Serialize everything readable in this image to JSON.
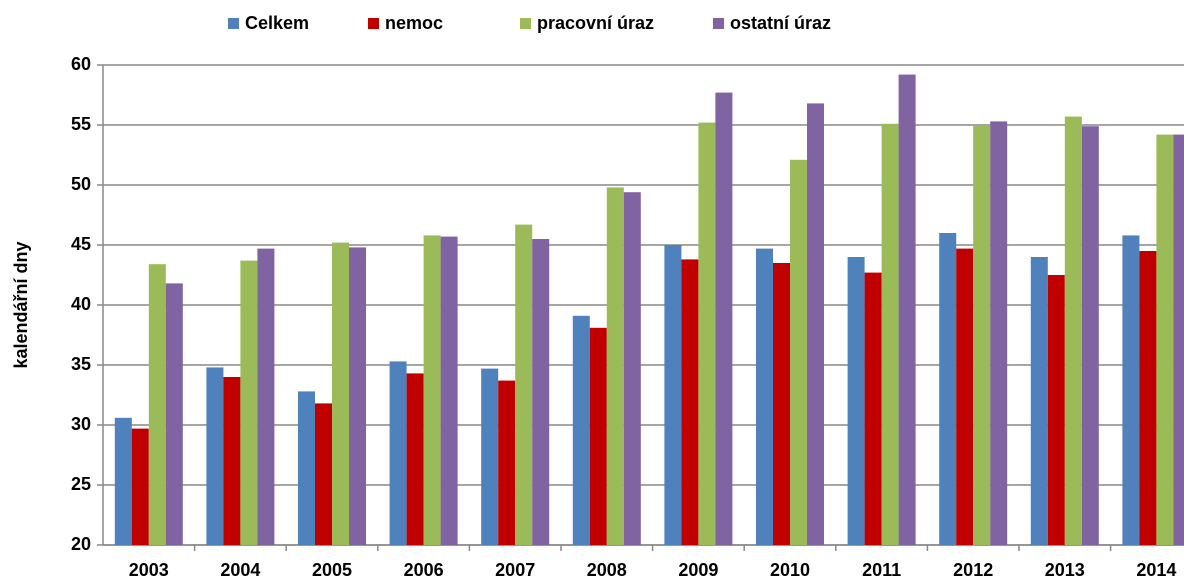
{
  "chart_data": {
    "type": "bar",
    "y_label": "kalendářní dny",
    "categories": [
      "2003",
      "2004",
      "2005",
      "2006",
      "2007",
      "2008",
      "2009",
      "2010",
      "2011",
      "2012",
      "2013",
      "2014"
    ],
    "series": [
      {
        "name": "Celkem",
        "color": "#4f81bd",
        "values": [
          30.6,
          34.8,
          32.8,
          35.3,
          34.7,
          39.1,
          45.0,
          44.7,
          44.0,
          46.0,
          44.0,
          45.8
        ]
      },
      {
        "name": "nemoc",
        "color": "#c00000",
        "values": [
          29.7,
          34.0,
          31.8,
          34.3,
          33.7,
          38.1,
          43.8,
          43.5,
          42.7,
          44.7,
          42.5,
          44.5
        ]
      },
      {
        "name": "pracovní úraz",
        "color": "#9bbb59",
        "values": [
          43.4,
          43.7,
          45.2,
          45.8,
          46.7,
          49.8,
          55.2,
          52.1,
          55.1,
          55.0,
          55.7,
          54.2
        ]
      },
      {
        "name": "ostatní úraz",
        "color": "#8064a2",
        "values": [
          41.8,
          44.7,
          44.8,
          45.7,
          45.5,
          49.4,
          57.7,
          56.8,
          59.2,
          55.3,
          54.9,
          54.2
        ]
      }
    ],
    "ylim": [
      20,
      60
    ],
    "yticks": [
      20,
      25,
      30,
      35,
      40,
      45,
      50,
      55,
      60
    ],
    "grid": true
  }
}
